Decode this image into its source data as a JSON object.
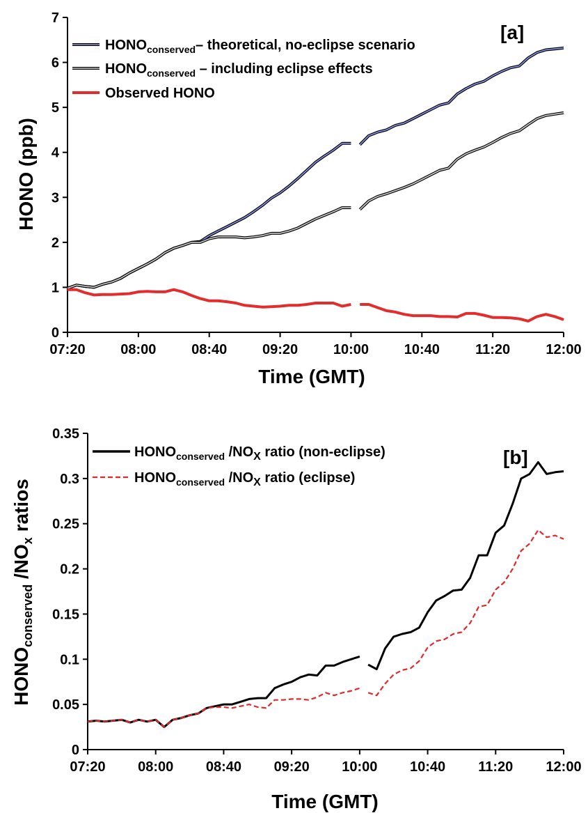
{
  "chart_data": [
    {
      "type": "line",
      "panel_label": "[a]",
      "xlabel": "Time (GMT)",
      "ylabel": "HONO (ppb)",
      "xlim": [
        "07:20",
        "12:00"
      ],
      "ylim": [
        0,
        7
      ],
      "xticks": [
        "07:20",
        "08:00",
        "08:40",
        "09:20",
        "10:00",
        "10:40",
        "11:20",
        "12:00"
      ],
      "yticks": [
        "0",
        "1",
        "2",
        "3",
        "4",
        "5",
        "6",
        "7"
      ],
      "grid": false,
      "legend_position": "top-left",
      "legend_entries": [
        {
          "main": "HONO",
          "sub": "conserved",
          "rest": "– theoretical, no-eclipse scenario"
        },
        {
          "main": "HONO",
          "sub": "conserved",
          "rest": " – including eclipse effects"
        },
        {
          "main": "Observed HONO",
          "sub": "",
          "rest": ""
        }
      ],
      "series": [
        {
          "color": "#5060c0",
          "x": [
            "07:20",
            "07:25",
            "07:30",
            "07:35",
            "07:40",
            "07:45",
            "07:50",
            "07:55",
            "08:00",
            "08:05",
            "08:10",
            "08:15",
            "08:20",
            "08:25",
            "08:30",
            "08:35",
            "08:40",
            "08:45",
            "08:50",
            "08:55",
            "09:00",
            "09:05",
            "09:10",
            "09:15",
            "09:20",
            "09:25",
            "09:30",
            "09:35",
            "09:40",
            "09:45",
            "09:50",
            "09:55",
            "10:00",
            null,
            "10:05",
            "10:10",
            "10:15",
            "10:20",
            "10:25",
            "10:30",
            "10:35",
            "10:40",
            "10:45",
            "10:50",
            "10:55",
            "11:00",
            "11:05",
            "11:10",
            "11:15",
            "11:20",
            "11:25",
            "11:30",
            "11:35",
            "11:40",
            "11:45",
            "11:50",
            "11:55",
            "12:00"
          ],
          "y": [
            0.98,
            1.05,
            1.02,
            1.0,
            1.07,
            1.12,
            1.2,
            1.32,
            1.42,
            1.52,
            1.63,
            1.77,
            1.87,
            1.93,
            2.0,
            2.02,
            2.15,
            2.25,
            2.35,
            2.45,
            2.55,
            2.68,
            2.82,
            2.98,
            3.1,
            3.25,
            3.42,
            3.6,
            3.78,
            3.92,
            4.05,
            4.2,
            4.2,
            null,
            4.17,
            4.37,
            4.45,
            4.5,
            4.6,
            4.65,
            4.75,
            4.85,
            4.95,
            5.05,
            5.1,
            5.3,
            5.42,
            5.52,
            5.58,
            5.7,
            5.8,
            5.88,
            5.92,
            6.1,
            6.22,
            6.28,
            6.3,
            6.32
          ]
        },
        {
          "color": "#1a1a1a",
          "x": [
            "07:20",
            "07:25",
            "07:30",
            "07:35",
            "07:40",
            "07:45",
            "07:50",
            "07:55",
            "08:00",
            "08:05",
            "08:10",
            "08:15",
            "08:20",
            "08:25",
            "08:30",
            "08:35",
            "08:40",
            "08:45",
            "08:50",
            "08:55",
            "09:00",
            "09:05",
            "09:10",
            "09:15",
            "09:20",
            "09:25",
            "09:30",
            "09:35",
            "09:40",
            "09:45",
            "09:50",
            "09:55",
            "10:00",
            null,
            "10:05",
            "10:10",
            "10:15",
            "10:20",
            "10:25",
            "10:30",
            "10:35",
            "10:40",
            "10:45",
            "10:50",
            "10:55",
            "11:00",
            "11:05",
            "11:10",
            "11:15",
            "11:20",
            "11:25",
            "11:30",
            "11:35",
            "11:40",
            "11:45",
            "11:50",
            "11:55",
            "12:00"
          ],
          "y": [
            0.98,
            1.05,
            1.02,
            1.0,
            1.07,
            1.12,
            1.2,
            1.32,
            1.42,
            1.52,
            1.63,
            1.77,
            1.87,
            1.93,
            2.0,
            2.0,
            2.08,
            2.12,
            2.12,
            2.12,
            2.1,
            2.12,
            2.15,
            2.2,
            2.2,
            2.25,
            2.32,
            2.42,
            2.52,
            2.6,
            2.68,
            2.77,
            2.77,
            null,
            2.73,
            2.92,
            3.02,
            3.08,
            3.15,
            3.22,
            3.3,
            3.4,
            3.5,
            3.6,
            3.65,
            3.85,
            3.97,
            4.05,
            4.12,
            4.22,
            4.33,
            4.42,
            4.48,
            4.62,
            4.75,
            4.82,
            4.85,
            4.88
          ]
        },
        {
          "color": "#e32d2d",
          "x": [
            "07:20",
            "07:25",
            "07:30",
            "07:35",
            "07:40",
            "07:45",
            "07:50",
            "07:55",
            "08:00",
            "08:05",
            "08:10",
            "08:15",
            "08:20",
            "08:25",
            "08:30",
            "08:35",
            "08:40",
            "08:45",
            "08:50",
            "08:55",
            "09:00",
            "09:05",
            "09:10",
            "09:15",
            "09:20",
            "09:25",
            "09:30",
            "09:35",
            "09:40",
            "09:45",
            "09:50",
            "09:55",
            "10:00",
            null,
            "10:05",
            "10:10",
            "10:15",
            "10:20",
            "10:25",
            "10:30",
            "10:35",
            "10:40",
            "10:45",
            "10:50",
            "10:55",
            "11:00",
            "11:05",
            "11:10",
            "11:15",
            "11:20",
            "11:25",
            "11:30",
            "11:35",
            "11:40",
            "11:45",
            "11:50",
            "11:55",
            "12:00"
          ],
          "y": [
            0.95,
            0.95,
            0.88,
            0.83,
            0.84,
            0.84,
            0.85,
            0.86,
            0.9,
            0.91,
            0.9,
            0.9,
            0.95,
            0.9,
            0.82,
            0.75,
            0.7,
            0.7,
            0.68,
            0.65,
            0.6,
            0.58,
            0.56,
            0.57,
            0.58,
            0.6,
            0.6,
            0.62,
            0.65,
            0.65,
            0.65,
            0.58,
            0.62,
            null,
            0.62,
            0.62,
            0.55,
            0.48,
            0.45,
            0.4,
            0.37,
            0.37,
            0.37,
            0.35,
            0.35,
            0.34,
            0.42,
            0.42,
            0.38,
            0.33,
            0.33,
            0.32,
            0.3,
            0.25,
            0.35,
            0.4,
            0.35,
            0.28
          ]
        }
      ]
    },
    {
      "type": "line",
      "panel_label": "[b]",
      "xlabel": "Time (GMT)",
      "ylabel": {
        "main": "HONO",
        "sub": "conserved",
        "mid": " /NO",
        "sub2": "x",
        "rest": " ratios"
      },
      "xlim": [
        "07:20",
        "12:00"
      ],
      "ylim": [
        0,
        0.35
      ],
      "xticks": [
        "07:20",
        "08:00",
        "08:40",
        "09:20",
        "10:00",
        "10:40",
        "11:20",
        "12:00"
      ],
      "yticks": [
        "0",
        "0.05",
        "0.1",
        "0.15",
        "0.2",
        "0.25",
        "0.3",
        "0.35"
      ],
      "grid": false,
      "legend_position": "top-left",
      "legend_entries": [
        {
          "main": "HONO",
          "sub": "conserved",
          "mid": " /NO",
          "sub2": "X",
          "rest": " ratio (non-eclipse)"
        },
        {
          "main": "HONO",
          "sub": "conserved",
          "mid": " /NO",
          "sub2": "X",
          "rest": " ratio (eclipse)"
        }
      ],
      "series": [
        {
          "color": "#000000",
          "style": "solid",
          "x": [
            "07:20",
            "07:25",
            "07:30",
            "07:35",
            "07:40",
            "07:45",
            "07:50",
            "07:55",
            "08:00",
            "08:05",
            "08:10",
            "08:15",
            "08:20",
            "08:25",
            "08:30",
            "08:35",
            "08:40",
            "08:45",
            "08:50",
            "08:55",
            "09:00",
            "09:05",
            "09:10",
            "09:15",
            "09:20",
            "09:25",
            "09:30",
            "09:35",
            "09:40",
            "09:45",
            "09:50",
            "09:55",
            "10:00",
            null,
            "10:05",
            "10:10",
            "10:15",
            "10:20",
            "10:25",
            "10:30",
            "10:35",
            "10:40",
            "10:45",
            "10:50",
            "10:55",
            "11:00",
            "11:05",
            "11:10",
            "11:15",
            "11:20",
            "11:25",
            "11:30",
            "11:35",
            "11:40",
            "11:45",
            "11:50",
            "11:55",
            "12:00"
          ],
          "y": [
            0.031,
            0.032,
            0.031,
            0.032,
            0.033,
            0.03,
            0.033,
            0.031,
            0.033,
            0.025,
            0.033,
            0.035,
            0.038,
            0.04,
            0.046,
            0.048,
            0.05,
            0.05,
            0.053,
            0.056,
            0.057,
            0.057,
            0.068,
            0.072,
            0.075,
            0.08,
            0.083,
            0.082,
            0.093,
            0.093,
            0.097,
            0.1,
            0.103,
            null,
            0.094,
            0.089,
            0.112,
            0.125,
            0.128,
            0.13,
            0.135,
            0.152,
            0.165,
            0.17,
            0.176,
            0.177,
            0.19,
            0.215,
            0.215,
            0.24,
            0.248,
            0.272,
            0.3,
            0.305,
            0.318,
            0.305,
            0.307,
            0.308
          ]
        },
        {
          "color": "#e02a2a",
          "style": "dashed",
          "x": [
            "07:20",
            "07:25",
            "07:30",
            "07:35",
            "07:40",
            "07:45",
            "07:50",
            "07:55",
            "08:00",
            "08:05",
            "08:10",
            "08:15",
            "08:20",
            "08:25",
            "08:30",
            "08:35",
            "08:40",
            "08:45",
            "08:50",
            "08:55",
            "09:00",
            "09:05",
            "09:10",
            "09:15",
            "09:20",
            "09:25",
            "09:30",
            "09:35",
            "09:40",
            "09:45",
            "09:50",
            "09:55",
            "10:00",
            null,
            "10:05",
            "10:10",
            "10:15",
            "10:20",
            "10:25",
            "10:30",
            "10:35",
            "10:40",
            "10:45",
            "10:50",
            "10:55",
            "11:00",
            "11:05",
            "11:10",
            "11:15",
            "11:20",
            "11:25",
            "11:30",
            "11:35",
            "11:40",
            "11:45",
            "11:50",
            "11:55",
            "12:00"
          ],
          "y": [
            0.031,
            0.032,
            0.031,
            0.032,
            0.033,
            0.03,
            0.033,
            0.031,
            0.033,
            0.025,
            0.033,
            0.035,
            0.038,
            0.04,
            0.046,
            0.047,
            0.047,
            0.046,
            0.048,
            0.05,
            0.047,
            0.046,
            0.055,
            0.055,
            0.056,
            0.056,
            0.055,
            0.058,
            0.063,
            0.06,
            0.063,
            0.065,
            0.068,
            null,
            0.063,
            0.06,
            0.073,
            0.083,
            0.088,
            0.09,
            0.098,
            0.113,
            0.12,
            0.122,
            0.128,
            0.13,
            0.14,
            0.158,
            0.16,
            0.177,
            0.185,
            0.2,
            0.22,
            0.228,
            0.243,
            0.235,
            0.237,
            0.233
          ]
        }
      ]
    }
  ]
}
